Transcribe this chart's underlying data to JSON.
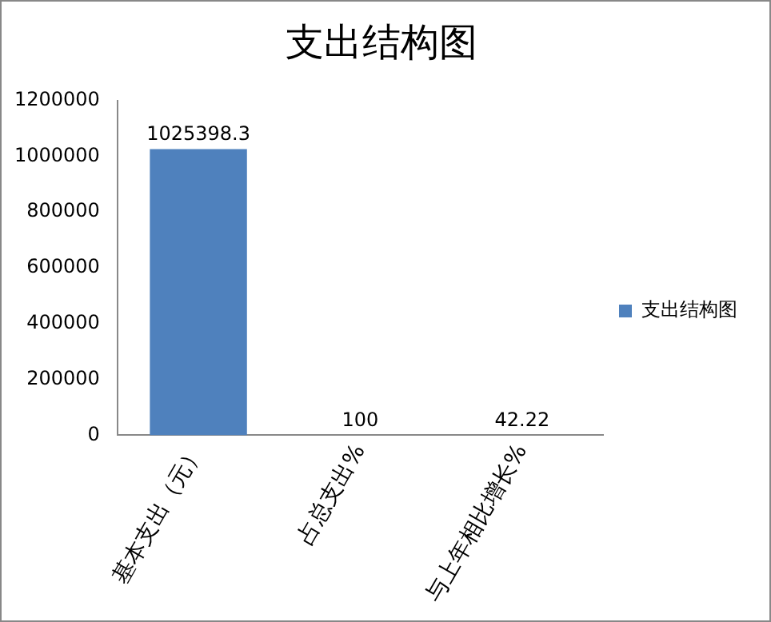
{
  "chart_data": {
    "type": "bar",
    "title": "支出结构图",
    "categories": [
      "基本支出（元）",
      "占总支出%",
      "与上年相比增长%"
    ],
    "series": [
      {
        "name": "支出结构图",
        "color": "#4f81bd",
        "values": [
          1025398.3,
          100,
          42.22
        ]
      }
    ],
    "ylim": [
      0,
      1200000
    ],
    "yticks": [
      0,
      200000,
      400000,
      600000,
      800000,
      1000000,
      1200000
    ],
    "grid": false,
    "legend": "right",
    "data_labels": true
  }
}
